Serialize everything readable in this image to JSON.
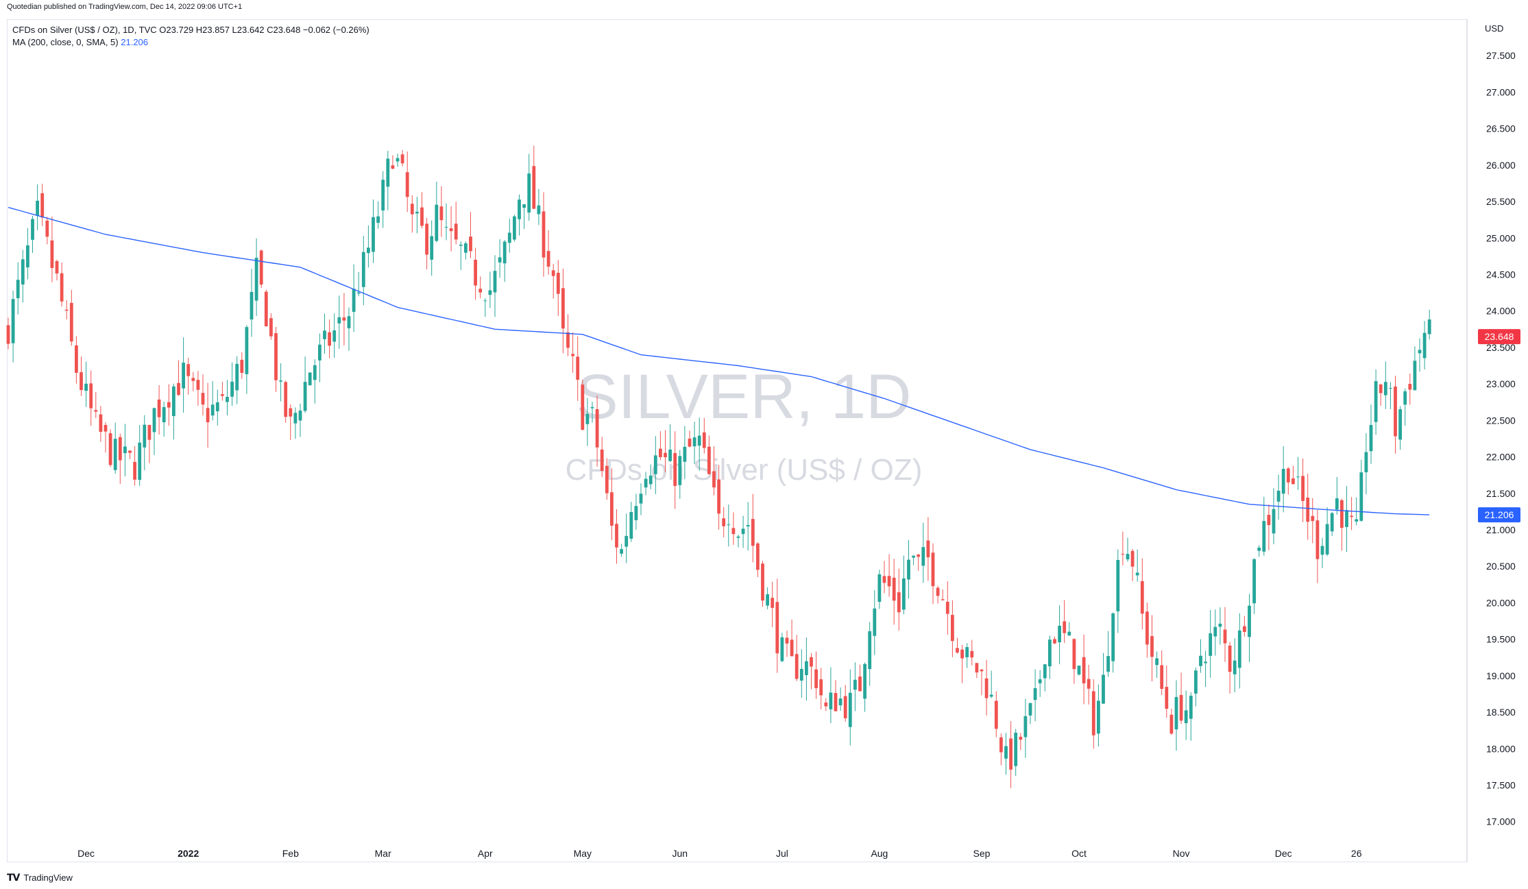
{
  "header": {
    "published": "Quotedian published on TradingView.com, Dec 14, 2022 09:06 UTC+1"
  },
  "legend": {
    "instrument": "CFDs on Silver (US$ / OZ), 1D, TVC  O23.729  H23.857  L23.642  C23.648  −0.062 (−0.26%)",
    "ma_label": "MA (200, close, 0, SMA, 5)",
    "ma_value": "21.206"
  },
  "axis": {
    "currency": "USD"
  },
  "watermark": {
    "line1": "SILVER, 1D",
    "line2": "CFDs on Silver (US$ / OZ)"
  },
  "footer": {
    "brand": "TradingView"
  },
  "colors": {
    "up": "#26a69a",
    "down": "#ef5350",
    "ma": "#2962ff",
    "last_price_badge": "#f23645",
    "ma_badge": "#2962ff"
  },
  "chart_data": {
    "type": "candlestick",
    "ylim": [
      16.8,
      28.0
    ],
    "y_ticks": [
      17.0,
      17.5,
      18.0,
      18.5,
      19.0,
      19.5,
      20.0,
      20.5,
      21.0,
      21.5,
      22.0,
      22.5,
      23.0,
      23.5,
      24.0,
      24.5,
      25.0,
      25.5,
      26.0,
      26.5,
      27.0,
      27.5
    ],
    "x_labels": [
      {
        "label": "Dec",
        "index": 16
      },
      {
        "label": "2022",
        "index": 37
      },
      {
        "label": "Feb",
        "index": 58
      },
      {
        "label": "Mar",
        "index": 77
      },
      {
        "label": "Apr",
        "index": 98
      },
      {
        "label": "May",
        "index": 118
      },
      {
        "label": "Jun",
        "index": 138
      },
      {
        "label": "Jul",
        "index": 159
      },
      {
        "label": "Aug",
        "index": 179
      },
      {
        "label": "Sep",
        "index": 200
      },
      {
        "label": "Oct",
        "index": 220
      },
      {
        "label": "Nov",
        "index": 241
      },
      {
        "label": "Dec",
        "index": 262
      },
      {
        "label": "26",
        "index": 277
      }
    ],
    "last_price": 23.648,
    "ma_last": 21.206,
    "close_anchors": [
      [
        0,
        23.8
      ],
      [
        4,
        24.8
      ],
      [
        6,
        25.3
      ],
      [
        10,
        24.4
      ],
      [
        14,
        23.2
      ],
      [
        18,
        22.4
      ],
      [
        22,
        22.0
      ],
      [
        26,
        21.9
      ],
      [
        30,
        22.6
      ],
      [
        33,
        22.9
      ],
      [
        36,
        23.1
      ],
      [
        40,
        22.6
      ],
      [
        44,
        22.7
      ],
      [
        48,
        23.3
      ],
      [
        51,
        24.5
      ],
      [
        53,
        24.0
      ],
      [
        56,
        22.8
      ],
      [
        58,
        22.4
      ],
      [
        60,
        22.8
      ],
      [
        62,
        23.2
      ],
      [
        64,
        23.4
      ],
      [
        67,
        23.7
      ],
      [
        70,
        24.0
      ],
      [
        73,
        24.6
      ],
      [
        75,
        25.1
      ],
      [
        77,
        25.6
      ],
      [
        79,
        26.2
      ],
      [
        81,
        25.8
      ],
      [
        83,
        25.2
      ],
      [
        86,
        25.0
      ],
      [
        88,
        25.3
      ],
      [
        90,
        25.0
      ],
      [
        93,
        24.8
      ],
      [
        96,
        24.5
      ],
      [
        99,
        24.3
      ],
      [
        101,
        24.6
      ],
      [
        103,
        25.0
      ],
      [
        105,
        25.6
      ],
      [
        107,
        25.7
      ],
      [
        109,
        25.2
      ],
      [
        112,
        24.5
      ],
      [
        114,
        23.6
      ],
      [
        116,
        23.2
      ],
      [
        118,
        22.6
      ],
      [
        120,
        22.5
      ],
      [
        122,
        21.8
      ],
      [
        124,
        21.0
      ],
      [
        126,
        20.7
      ],
      [
        128,
        21.3
      ],
      [
        131,
        21.9
      ],
      [
        134,
        22.0
      ],
      [
        137,
        21.8
      ],
      [
        140,
        22.1
      ],
      [
        142,
        22.2
      ],
      [
        144,
        21.7
      ],
      [
        146,
        21.1
      ],
      [
        148,
        21.3
      ],
      [
        150,
        21.0
      ],
      [
        152,
        21.1
      ],
      [
        154,
        20.5
      ],
      [
        157,
        19.8
      ],
      [
        159,
        19.3
      ],
      [
        161,
        19.1
      ],
      [
        163,
        19.2
      ],
      [
        166,
        19.0
      ],
      [
        168,
        18.5
      ],
      [
        170,
        18.7
      ],
      [
        173,
        18.6
      ],
      [
        175,
        18.9
      ],
      [
        177,
        19.8
      ],
      [
        179,
        20.3
      ],
      [
        181,
        20.2
      ],
      [
        183,
        20.0
      ],
      [
        185,
        20.6
      ],
      [
        187,
        20.5
      ],
      [
        189,
        20.6
      ],
      [
        191,
        20.3
      ],
      [
        193,
        19.9
      ],
      [
        195,
        19.5
      ],
      [
        197,
        19.2
      ],
      [
        199,
        19.1
      ],
      [
        201,
        18.9
      ],
      [
        203,
        18.4
      ],
      [
        205,
        17.8
      ],
      [
        207,
        18.0
      ],
      [
        209,
        18.3
      ],
      [
        211,
        18.6
      ],
      [
        213,
        19.4
      ],
      [
        215,
        19.6
      ],
      [
        217,
        19.5
      ],
      [
        219,
        19.3
      ],
      [
        221,
        18.8
      ],
      [
        223,
        18.4
      ],
      [
        225,
        18.9
      ],
      [
        227,
        20.1
      ],
      [
        229,
        20.9
      ],
      [
        231,
        20.6
      ],
      [
        233,
        19.8
      ],
      [
        235,
        19.3
      ],
      [
        237,
        18.8
      ],
      [
        239,
        18.4
      ],
      [
        241,
        18.6
      ],
      [
        243,
        18.5
      ],
      [
        245,
        19.3
      ],
      [
        247,
        19.5
      ],
      [
        249,
        19.6
      ],
      [
        251,
        19.2
      ],
      [
        253,
        19.5
      ],
      [
        255,
        20.2
      ],
      [
        257,
        20.9
      ],
      [
        259,
        21.2
      ],
      [
        261,
        21.6
      ],
      [
        263,
        21.9
      ],
      [
        265,
        21.5
      ],
      [
        267,
        21.2
      ],
      [
        269,
        20.8
      ],
      [
        271,
        21.1
      ],
      [
        273,
        21.4
      ],
      [
        275,
        21.1
      ],
      [
        277,
        20.9
      ],
      [
        279,
        22.2
      ],
      [
        281,
        22.8
      ],
      [
        283,
        23.1
      ],
      [
        285,
        22.4
      ],
      [
        287,
        22.9
      ],
      [
        289,
        23.3
      ],
      [
        291,
        23.7
      ],
      [
        292,
        23.648
      ]
    ],
    "ma_anchors": [
      [
        0,
        25.42
      ],
      [
        20,
        25.05
      ],
      [
        40,
        24.8
      ],
      [
        60,
        24.6
      ],
      [
        80,
        24.05
      ],
      [
        100,
        23.75
      ],
      [
        118,
        23.68
      ],
      [
        130,
        23.4
      ],
      [
        150,
        23.25
      ],
      [
        165,
        23.1
      ],
      [
        180,
        22.8
      ],
      [
        195,
        22.45
      ],
      [
        210,
        22.1
      ],
      [
        225,
        21.85
      ],
      [
        240,
        21.55
      ],
      [
        255,
        21.35
      ],
      [
        270,
        21.28
      ],
      [
        285,
        21.22
      ],
      [
        292,
        21.206
      ]
    ]
  }
}
